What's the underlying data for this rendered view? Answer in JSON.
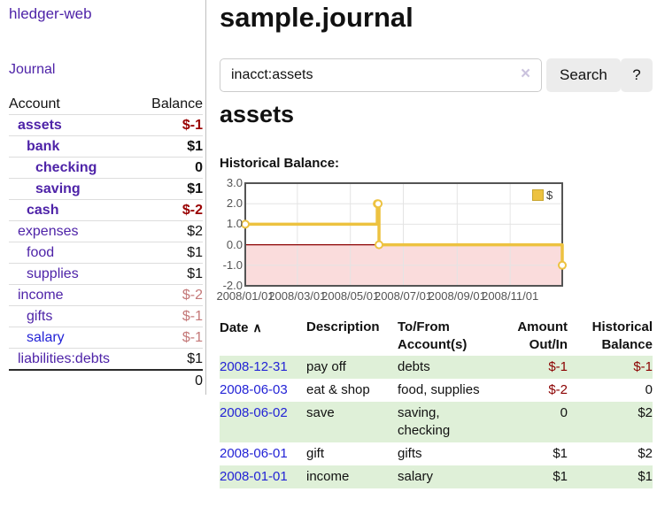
{
  "colors": {
    "link_purple": "#4e23a8",
    "link_blue": "#2323d6",
    "negative": "#990000",
    "negative_muted": "#c47878",
    "table_stripe_green": "#dff0d8",
    "button_bg": "#ececec",
    "chart_line": "#edc240",
    "chart_negative_fill": "#fadcdc",
    "chart_zero_line": "#8b0000",
    "chart_grid": "#e4e4e4",
    "chart_border": "#545454"
  },
  "sidebar": {
    "app_title": "hledger-web",
    "journal_label": "Journal",
    "table": {
      "headers": {
        "account": "Account",
        "balance": "Balance"
      },
      "rows": [
        {
          "name": "assets",
          "level": 1,
          "emphasis": true,
          "link": "purple",
          "balance": "$-1",
          "balance_class": "neg"
        },
        {
          "name": "bank",
          "level": 2,
          "emphasis": true,
          "link": "purple",
          "balance": "$1",
          "balance_class": "pos"
        },
        {
          "name": "checking",
          "level": 3,
          "emphasis": true,
          "link": "purple",
          "balance": "0",
          "balance_class": "pos"
        },
        {
          "name": "saving",
          "level": 3,
          "emphasis": true,
          "link": "purple",
          "balance": "$1",
          "balance_class": "pos"
        },
        {
          "name": "cash",
          "level": 2,
          "emphasis": true,
          "link": "purple",
          "balance": "$-2",
          "balance_class": "neg"
        },
        {
          "name": "expenses",
          "level": 1,
          "emphasis": false,
          "link": "purple",
          "balance": "$2",
          "balance_class": "pos"
        },
        {
          "name": "food",
          "level": 2,
          "emphasis": false,
          "link": "purple",
          "balance": "$1",
          "balance_class": "pos"
        },
        {
          "name": "supplies",
          "level": 2,
          "emphasis": false,
          "link": "purple",
          "balance": "$1",
          "balance_class": "pos"
        },
        {
          "name": "income",
          "level": 1,
          "emphasis": false,
          "link": "purple",
          "balance": "$-2",
          "balance_class": "neg-light"
        },
        {
          "name": "gifts",
          "level": 2,
          "emphasis": false,
          "link": "purple",
          "balance": "$-1",
          "balance_class": "neg-light"
        },
        {
          "name": "salary",
          "level": 2,
          "emphasis": false,
          "link": "blue",
          "balance": "$-1",
          "balance_class": "neg-light"
        },
        {
          "name": "liabilities:debts",
          "level": 1,
          "emphasis": false,
          "link": "purple",
          "balance": "$1",
          "balance_class": "pos"
        }
      ],
      "total": "0"
    }
  },
  "header": {
    "title": "sample.journal"
  },
  "search": {
    "value": "inacct:assets",
    "clear_icon": "×",
    "button_label": "Search",
    "help_label": "?"
  },
  "account_page": {
    "heading": "assets",
    "chart_label": "Historical Balance:"
  },
  "chart_data": {
    "type": "line",
    "step": true,
    "title": "Historical Balance",
    "legend": {
      "position": "top-right",
      "entries": [
        {
          "label": "$",
          "color": "#edc240"
        }
      ]
    },
    "x": [
      "2008-01-01",
      "2008-06-01",
      "2008-06-02",
      "2008-06-03",
      "2008-12-31"
    ],
    "series": [
      {
        "name": "$",
        "values": [
          1,
          2,
          2,
          0,
          -1
        ]
      }
    ],
    "xlim": [
      "2008-01-01",
      "2008-12-31"
    ],
    "ylim": [
      -2,
      3
    ],
    "y_ticks": [
      "3.0",
      "2.0",
      "1.0",
      "0.0",
      "-1.0",
      "-2.0"
    ],
    "x_ticks": [
      {
        "date": "2008-01-01",
        "label": "2008/01/01"
      },
      {
        "date": "2008-03-01",
        "label": "2008/03/01"
      },
      {
        "date": "2008-05-01",
        "label": "2008/05/01"
      },
      {
        "date": "2008-07-01",
        "label": "2008/07/01"
      },
      {
        "date": "2008-09-01",
        "label": "2008/09/01"
      },
      {
        "date": "2008-11-01",
        "label": "2008/11/01"
      }
    ],
    "grid": true,
    "line_color": "#edc240",
    "marker": "open-circle",
    "negative_region_fill": "#fadcdc",
    "zero_line_color": "#8b0000"
  },
  "register": {
    "headers": [
      "Date",
      "Description",
      "To/From Account(s)",
      "Amount Out/In",
      "Historical Balance"
    ],
    "sort_indicator": "∧",
    "rows": [
      {
        "date": "2008-12-31",
        "description": "pay off",
        "accounts": "debts",
        "amount": "$-1",
        "amount_neg": true,
        "balance": "$-1",
        "balance_neg": true
      },
      {
        "date": "2008-06-03",
        "description": "eat & shop",
        "accounts": "food, supplies",
        "amount": "$-2",
        "amount_neg": true,
        "balance": "0",
        "balance_neg": false
      },
      {
        "date": "2008-06-02",
        "description": "save",
        "accounts": "saving, checking",
        "amount": "0",
        "amount_neg": false,
        "balance": "$2",
        "balance_neg": false
      },
      {
        "date": "2008-06-01",
        "description": "gift",
        "accounts": "gifts",
        "amount": "$1",
        "amount_neg": false,
        "balance": "$2",
        "balance_neg": false
      },
      {
        "date": "2008-01-01",
        "description": "income",
        "accounts": "salary",
        "amount": "$1",
        "amount_neg": false,
        "balance": "$1",
        "balance_neg": false
      }
    ]
  }
}
